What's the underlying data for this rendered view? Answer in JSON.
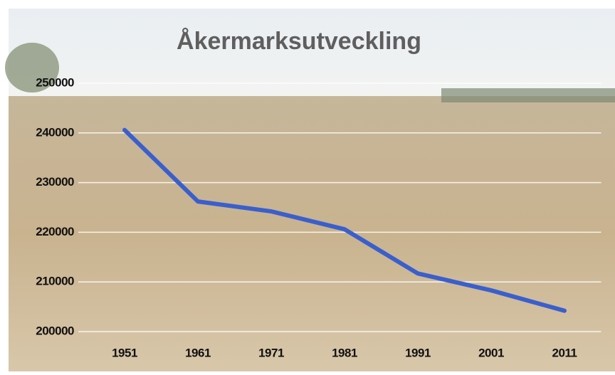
{
  "chart_data": {
    "type": "line",
    "title": "Åkermarksutveckling",
    "categories": [
      "1951",
      "1961",
      "1971",
      "1981",
      "1991",
      "2001",
      "2011"
    ],
    "values": [
      240600,
      226200,
      224200,
      220600,
      211700,
      208300,
      204200
    ],
    "color": "#3a5fcd",
    "ylim": [
      200000,
      250000
    ],
    "yticks": [
      200000,
      210000,
      220000,
      230000,
      240000,
      250000
    ],
    "grid": true
  }
}
